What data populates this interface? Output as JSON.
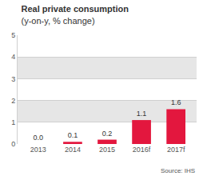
{
  "chart_data": {
    "type": "bar",
    "title": "Real private consumption",
    "subtitle": "(y-on-y, % change)",
    "annotations": [
      "Source: IHS"
    ],
    "categories": [
      "2013",
      "2014",
      "2015",
      "2016f",
      "2017f"
    ],
    "values": [
      0.0,
      0.1,
      0.2,
      1.1,
      1.6
    ],
    "value_labels": [
      "0.0",
      "0.1",
      "0.2",
      "1.1",
      "1.6"
    ],
    "data_labels": true,
    "color": "#e3173e",
    "ylim": [
      0,
      5
    ],
    "yticks": [
      0,
      1,
      2,
      3,
      4,
      5
    ],
    "grid": true
  }
}
